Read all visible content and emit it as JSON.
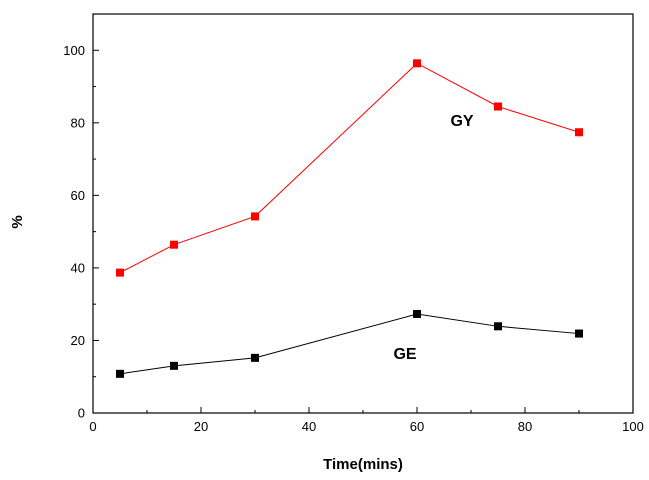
{
  "chart_data": {
    "type": "line",
    "title": "",
    "xlabel": "Time(mins)",
    "ylabel": "%",
    "xlim": [
      0,
      100
    ],
    "ylim": [
      0,
      110
    ],
    "x_ticks": [
      0,
      20,
      40,
      60,
      80,
      100
    ],
    "y_ticks": [
      0,
      20,
      40,
      60,
      80,
      100
    ],
    "grid": false,
    "x": [
      5,
      15,
      30,
      60,
      75,
      90
    ],
    "series": [
      {
        "name": "GY",
        "color": "#ff0000",
        "marker": "square",
        "values": [
          38.7,
          46.4,
          54.2,
          96.4,
          84.5,
          77.4
        ]
      },
      {
        "name": "GE",
        "color": "#000000",
        "marker": "square",
        "values": [
          10.8,
          13.0,
          15.2,
          27.3,
          23.9,
          21.9
        ]
      }
    ]
  }
}
